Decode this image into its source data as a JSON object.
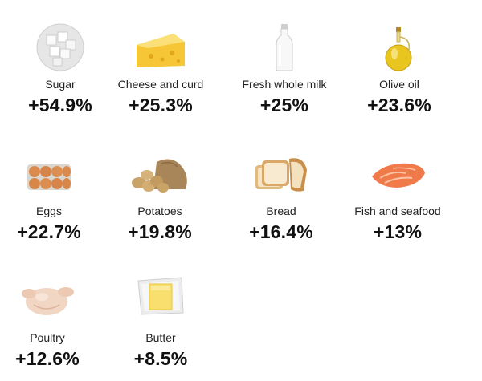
{
  "items": [
    {
      "label": "Sugar",
      "change": "+54.9%",
      "icon": "sugar-cubes-icon"
    },
    {
      "label": "Cheese and curd",
      "change": "+25.3%",
      "icon": "cheese-icon"
    },
    {
      "label": "Fresh whole milk",
      "change": "+25%",
      "icon": "milk-bottle-icon"
    },
    {
      "label": "Olive oil",
      "change": "+23.6%",
      "icon": "olive-oil-bottle-icon"
    },
    {
      "label": "Eggs",
      "change": "+22.7%",
      "icon": "eggs-carton-icon"
    },
    {
      "label": "Potatoes",
      "change": "+19.8%",
      "icon": "potatoes-sack-icon"
    },
    {
      "label": "Bread",
      "change": "+16.4%",
      "icon": "bread-loaf-icon"
    },
    {
      "label": "Fish and seafood",
      "change": "+13%",
      "icon": "salmon-fillet-icon"
    },
    {
      "label": "Poultry",
      "change": "+12.6%",
      "icon": "raw-chicken-icon"
    },
    {
      "label": "Butter",
      "change": "+8.5%",
      "icon": "butter-block-icon"
    }
  ],
  "colors": {
    "text": "#111111",
    "label": "#222222"
  }
}
